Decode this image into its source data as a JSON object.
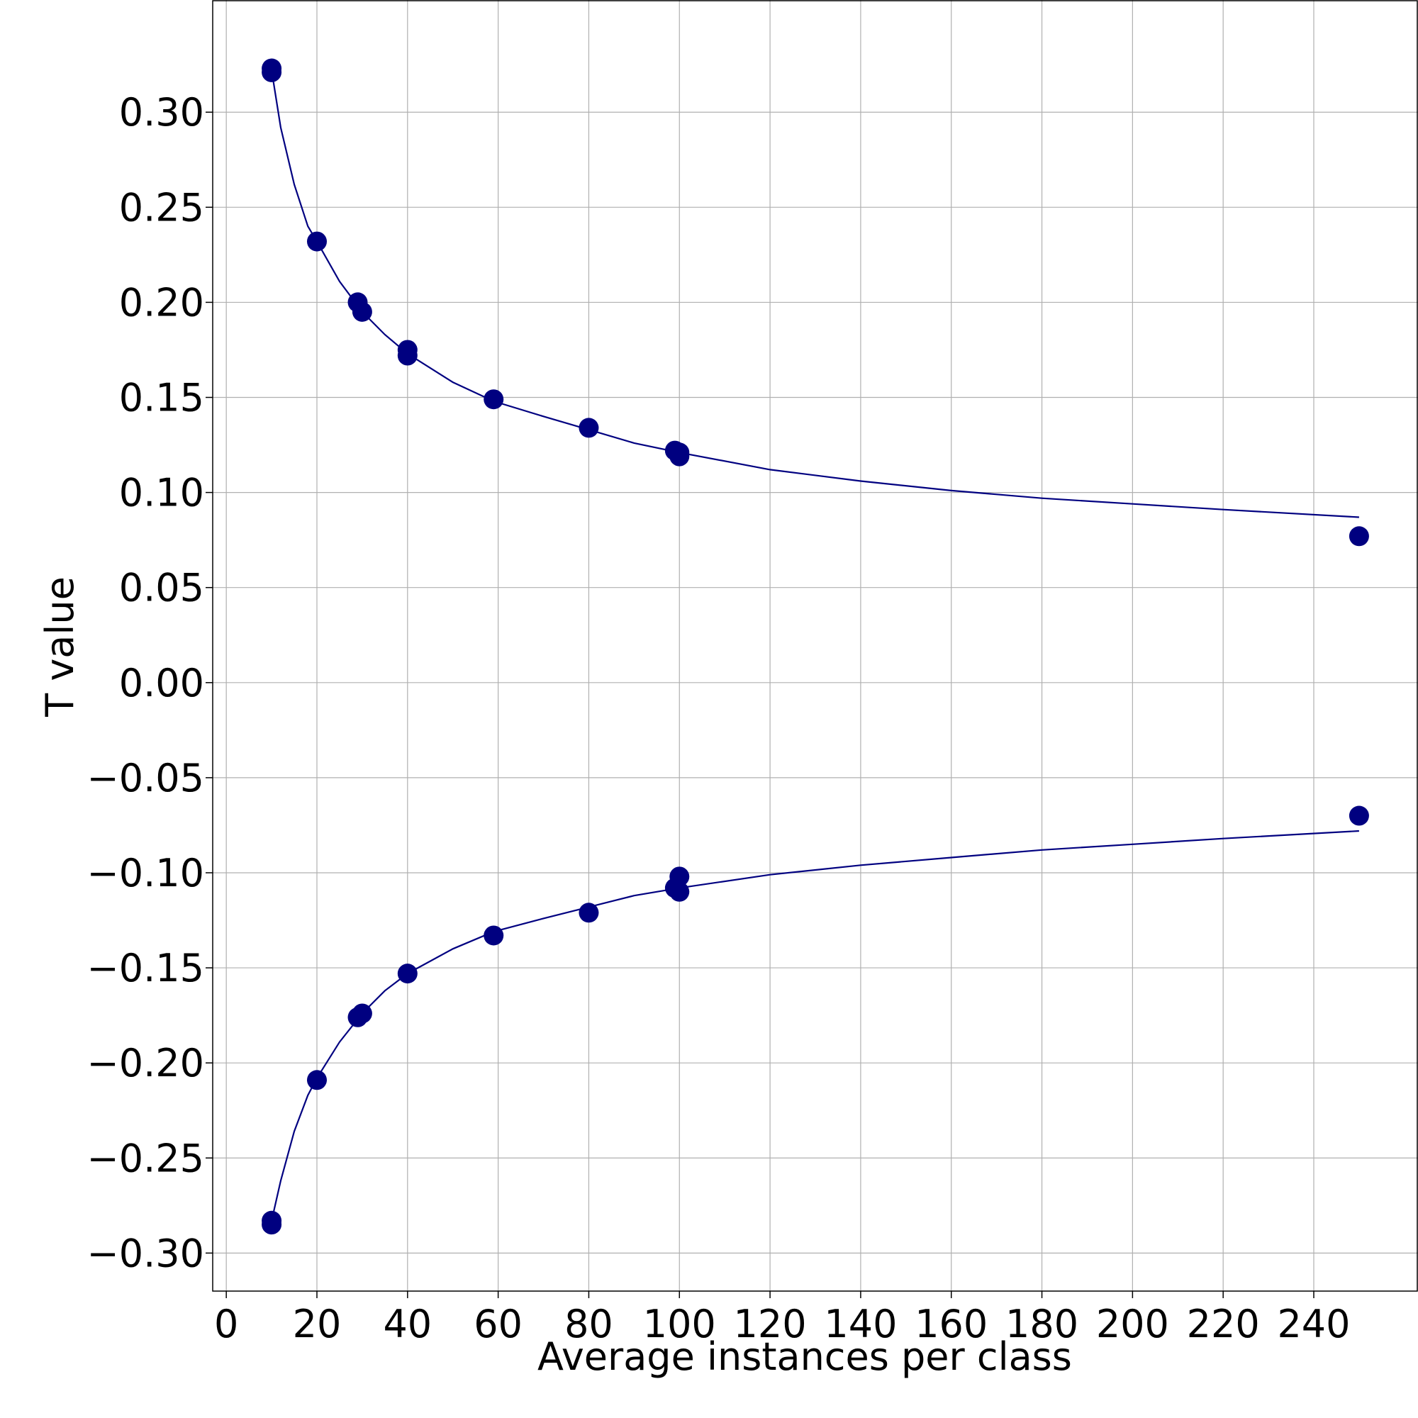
{
  "chart_data": {
    "type": "scatter",
    "title": "",
    "xlabel": "Average instances per class",
    "ylabel": "T value",
    "xlim": [
      -3,
      263
    ],
    "ylim": [
      -0.32,
      0.359
    ],
    "grid": true,
    "legend": "none",
    "color": "#000080",
    "x_ticks": [
      0,
      20,
      40,
      60,
      80,
      100,
      120,
      140,
      160,
      180,
      200,
      220,
      240
    ],
    "x_tick_labels": [
      "0",
      "20",
      "40",
      "60",
      "80",
      "100",
      "120",
      "140",
      "160",
      "180",
      "200",
      "220",
      "240"
    ],
    "y_ticks": [
      0.3,
      0.25,
      0.2,
      0.15,
      0.1,
      0.05,
      0.0,
      -0.05,
      -0.1,
      -0.15,
      -0.2,
      -0.25,
      -0.3
    ],
    "y_tick_labels": [
      "0.30",
      "0.25",
      "0.20",
      "0.15",
      "0.10",
      "0.05",
      "0.00",
      "−0.05",
      "−0.10",
      "−0.15",
      "−0.20",
      "−0.25",
      "−0.30"
    ],
    "series": [
      {
        "kind": "scatter",
        "points": [
          [
            10,
            0.323
          ],
          [
            10,
            0.321
          ],
          [
            20,
            0.232
          ],
          [
            29,
            0.2
          ],
          [
            30,
            0.195
          ],
          [
            40,
            0.175
          ],
          [
            40,
            0.172
          ],
          [
            59,
            0.149
          ],
          [
            80,
            0.134
          ],
          [
            99,
            0.122
          ],
          [
            100,
            0.121
          ],
          [
            100,
            0.119
          ],
          [
            250,
            0.077
          ]
        ]
      },
      {
        "kind": "scatter",
        "points": [
          [
            10,
            -0.283
          ],
          [
            10,
            -0.285
          ],
          [
            20,
            -0.209
          ],
          [
            29,
            -0.176
          ],
          [
            30,
            -0.174
          ],
          [
            40,
            -0.153
          ],
          [
            59,
            -0.133
          ],
          [
            80,
            -0.121
          ],
          [
            99,
            -0.108
          ],
          [
            100,
            -0.102
          ],
          [
            100,
            -0.11
          ],
          [
            250,
            -0.07
          ]
        ]
      },
      {
        "kind": "line",
        "points": [
          [
            10,
            0.322
          ],
          [
            12,
            0.292
          ],
          [
            15,
            0.262
          ],
          [
            18,
            0.24
          ],
          [
            20,
            0.232
          ],
          [
            25,
            0.211
          ],
          [
            30,
            0.195
          ],
          [
            35,
            0.183
          ],
          [
            40,
            0.173
          ],
          [
            50,
            0.158
          ],
          [
            59,
            0.148
          ],
          [
            70,
            0.14
          ],
          [
            80,
            0.133
          ],
          [
            90,
            0.126
          ],
          [
            100,
            0.121
          ],
          [
            120,
            0.112
          ],
          [
            140,
            0.106
          ],
          [
            160,
            0.101
          ],
          [
            180,
            0.097
          ],
          [
            200,
            0.094
          ],
          [
            220,
            0.091
          ],
          [
            250,
            0.087
          ]
        ]
      },
      {
        "kind": "line",
        "points": [
          [
            10,
            -0.283
          ],
          [
            12,
            -0.262
          ],
          [
            15,
            -0.236
          ],
          [
            18,
            -0.217
          ],
          [
            20,
            -0.208
          ],
          [
            25,
            -0.189
          ],
          [
            30,
            -0.174
          ],
          [
            35,
            -0.162
          ],
          [
            40,
            -0.153
          ],
          [
            50,
            -0.14
          ],
          [
            59,
            -0.131
          ],
          [
            70,
            -0.124
          ],
          [
            80,
            -0.118
          ],
          [
            90,
            -0.112
          ],
          [
            100,
            -0.108
          ],
          [
            120,
            -0.101
          ],
          [
            140,
            -0.096
          ],
          [
            160,
            -0.092
          ],
          [
            180,
            -0.088
          ],
          [
            200,
            -0.085
          ],
          [
            220,
            -0.082
          ],
          [
            250,
            -0.078
          ]
        ]
      }
    ]
  }
}
